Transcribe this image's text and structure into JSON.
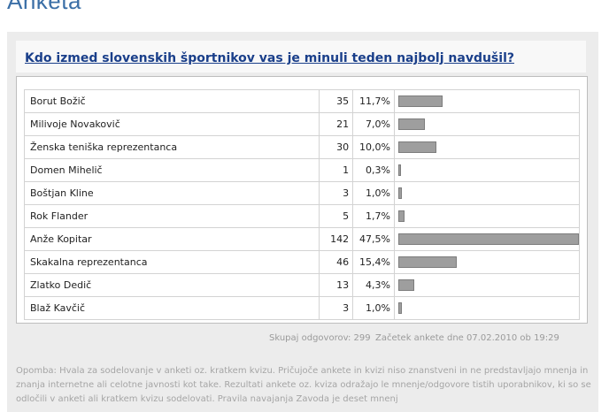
{
  "page_title": "Anketa",
  "question": "Kdo izmed slovenskih športnikov vas je minuli teden najbolj navdušil?",
  "rows": [
    {
      "name": "Borut Božič",
      "votes": "35",
      "percent": "11,7%",
      "fraction": 0.117
    },
    {
      "name": "Milivoje Novakovič",
      "votes": "21",
      "percent": "7,0%",
      "fraction": 0.07
    },
    {
      "name": "Ženska teniška reprezentanca",
      "votes": "30",
      "percent": "10,0%",
      "fraction": 0.1
    },
    {
      "name": "Domen Mihelič",
      "votes": "1",
      "percent": "0,3%",
      "fraction": 0.003
    },
    {
      "name": "Boštjan Kline",
      "votes": "3",
      "percent": "1,0%",
      "fraction": 0.01
    },
    {
      "name": "Rok Flander",
      "votes": "5",
      "percent": "1,7%",
      "fraction": 0.017
    },
    {
      "name": "Anže Kopitar",
      "votes": "142",
      "percent": "47,5%",
      "fraction": 0.475
    },
    {
      "name": "Skakalna reprezentanca",
      "votes": "46",
      "percent": "15,4%",
      "fraction": 0.154
    },
    {
      "name": "Zlatko Dedič",
      "votes": "13",
      "percent": "4,3%",
      "fraction": 0.043
    },
    {
      "name": "Blaž Kavčič",
      "votes": "3",
      "percent": "1,0%",
      "fraction": 0.01
    }
  ],
  "total_responses": "Skupaj odgovorov: 299",
  "start_date": "Začetek ankete dne 07.02.2010 ob 19:29",
  "note": "Opomba: Hvala za sodelovanje v anketi oz. kratkem kvizu. Pričujoče ankete in kvizi niso znanstveni in ne predstavljajo mnenja in znanja internetne ali celotne javnosti kot take. Rezultati ankete oz. kviza odražajo le mnenje/odgovore tistih uporabnikov, ki so se odločili v anketi ali kratkem kvizu sodelovati. Pravila navajanja Zavoda je deset mnenj",
  "colors": {
    "title": "#3b6fa7",
    "question": "#1a3f8a",
    "bar": "#9e9e9e",
    "panel": "#ececec"
  }
}
